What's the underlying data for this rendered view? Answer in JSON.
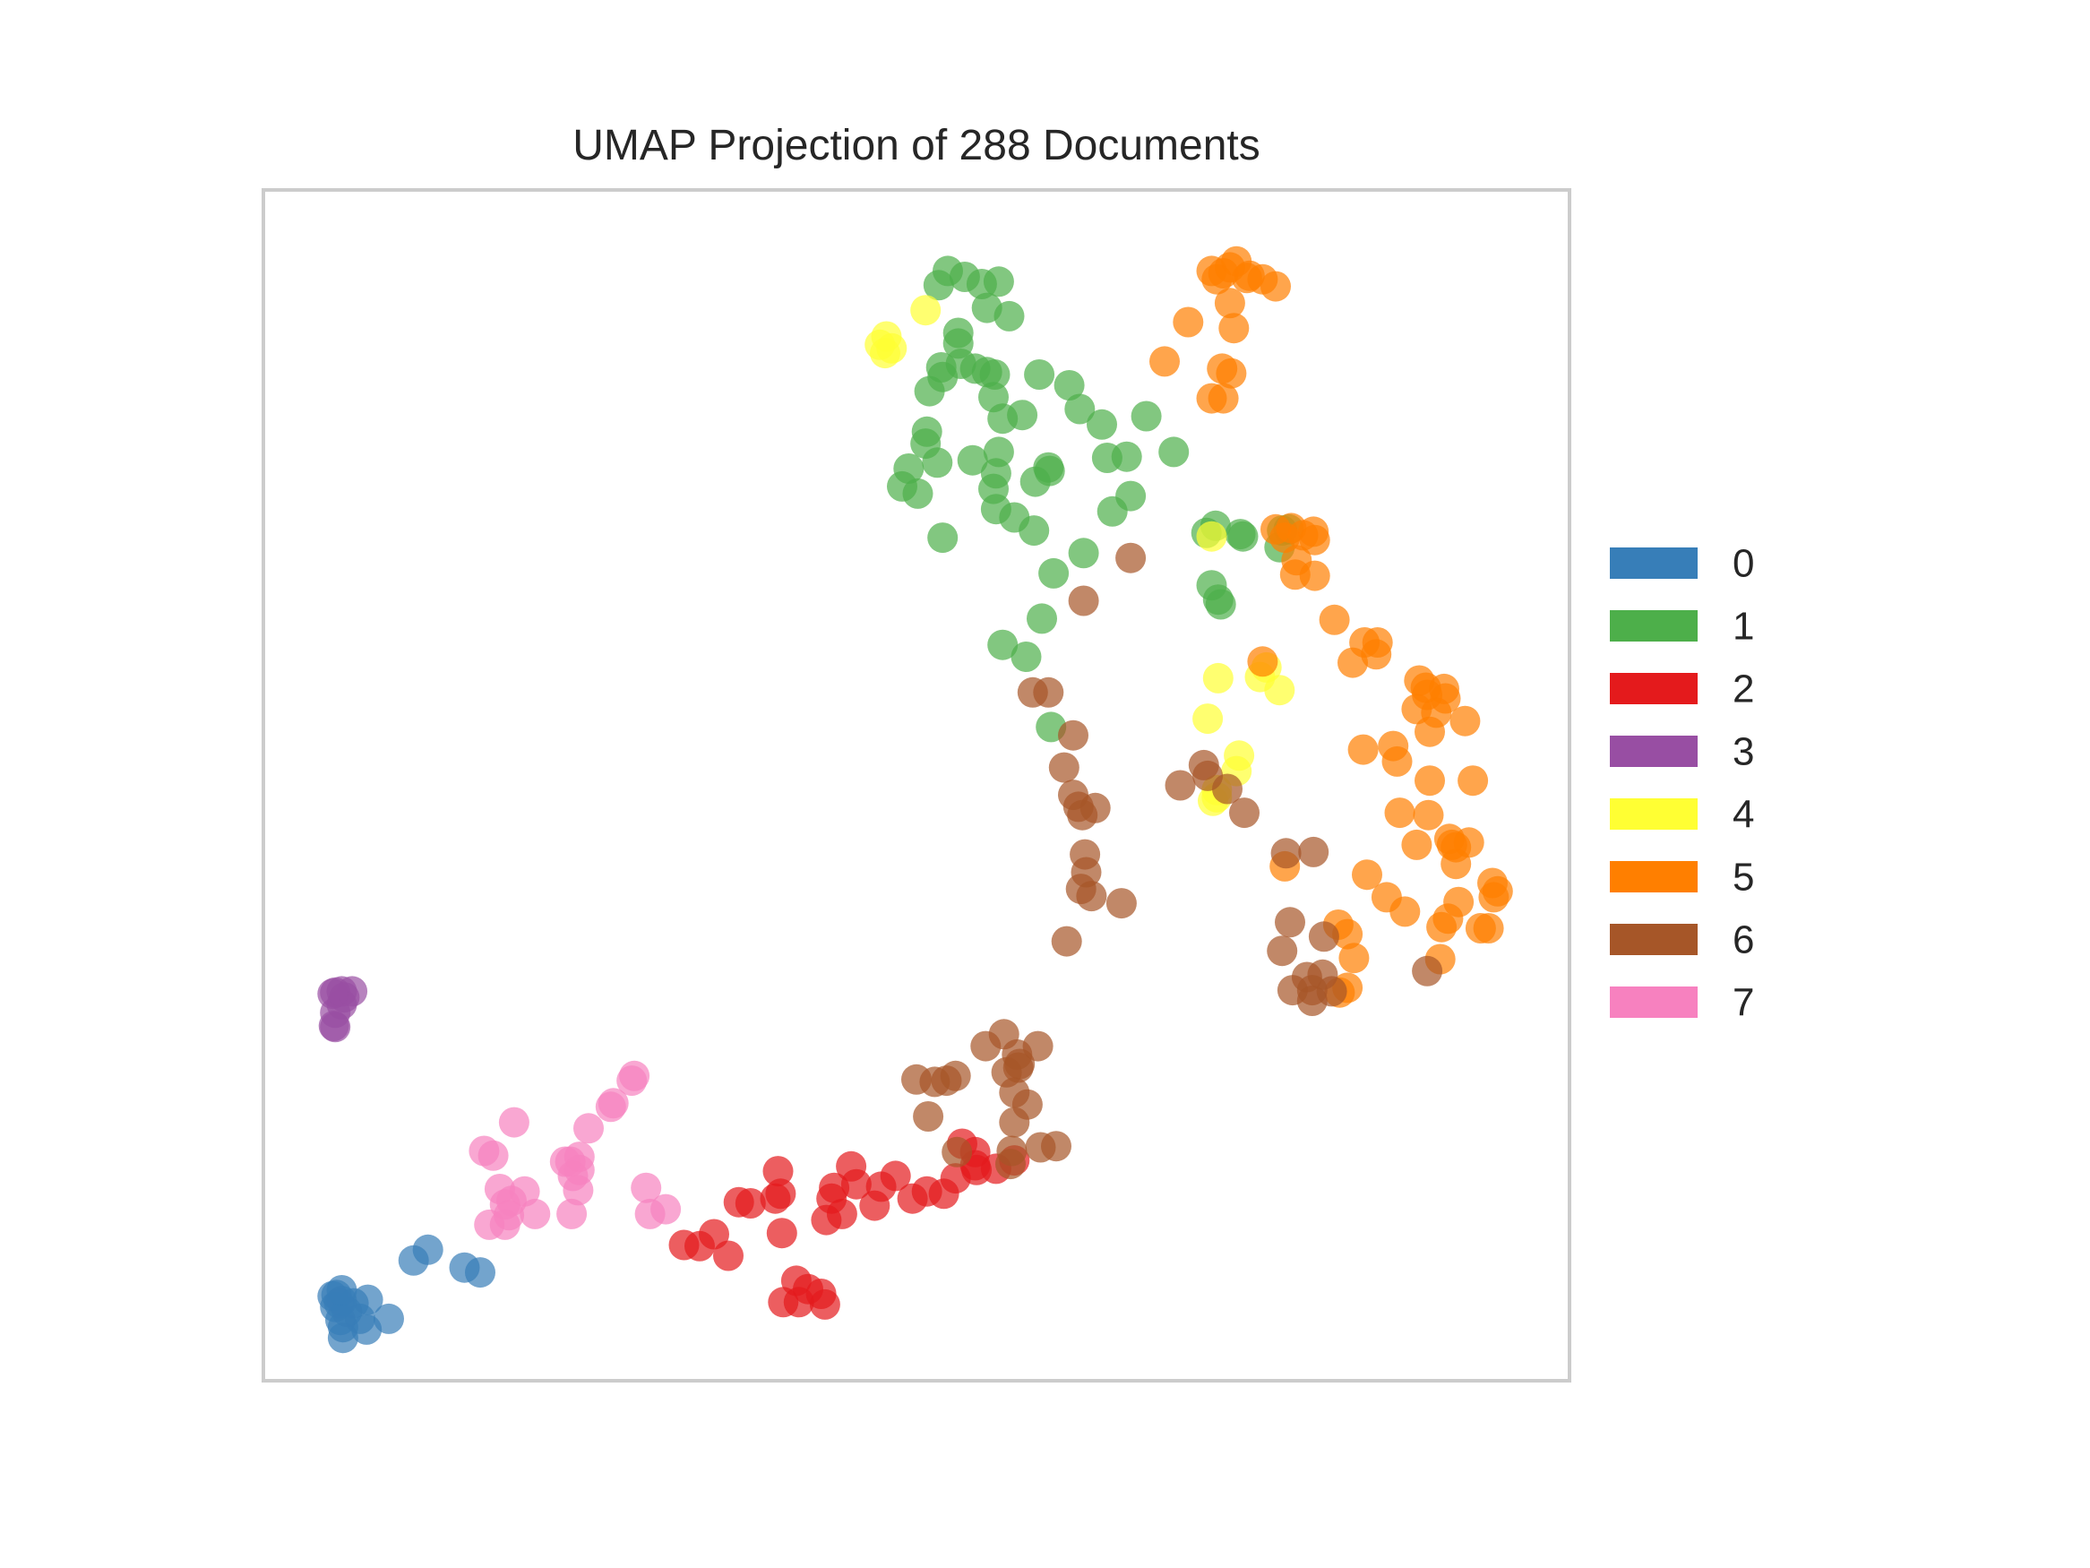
{
  "chart_data": {
    "type": "scatter",
    "title": "UMAP Projection of 288 Documents",
    "xlabel": "",
    "ylabel": "",
    "xlim": [
      0,
      100
    ],
    "ylim": [
      0,
      100
    ],
    "grid": false,
    "ticks": false,
    "legend_position": "right",
    "marker_opacity": 0.7,
    "series": [
      {
        "name": "0",
        "color": "#377eb8",
        "points": [
          [
            6.1,
            4.5
          ],
          [
            6.9,
            6.5
          ],
          [
            5.9,
            5.1
          ],
          [
            5.6,
            7.2
          ],
          [
            7.4,
            5.2
          ],
          [
            8.0,
            6.8
          ],
          [
            7.9,
            4.3
          ],
          [
            9.6,
            5.2
          ],
          [
            5.3,
            7.1
          ],
          [
            6.1,
            3.6
          ],
          [
            5.5,
            6.2
          ],
          [
            6.0,
            6.7
          ],
          [
            11.5,
            10.1
          ],
          [
            12.6,
            11.0
          ],
          [
            15.4,
            9.5
          ],
          [
            16.6,
            9.1
          ],
          [
            5.8,
            6.5
          ],
          [
            6.4,
            5.8
          ],
          [
            6.0,
            7.6
          ]
        ]
      },
      {
        "name": "1",
        "color": "#4daf4a",
        "points": [
          [
            51.7,
            92.0
          ],
          [
            52.4,
            93.2
          ],
          [
            53.7,
            92.7
          ],
          [
            55.0,
            92.1
          ],
          [
            56.3,
            92.3
          ],
          [
            55.4,
            90.1
          ],
          [
            57.1,
            89.4
          ],
          [
            53.2,
            88.0
          ],
          [
            53.2,
            87.1
          ],
          [
            51.9,
            85.1
          ],
          [
            52.0,
            84.3
          ],
          [
            53.4,
            85.4
          ],
          [
            54.5,
            85.0
          ],
          [
            55.4,
            84.7
          ],
          [
            56.0,
            84.5
          ],
          [
            59.4,
            84.5
          ],
          [
            61.7,
            83.6
          ],
          [
            55.9,
            82.6
          ],
          [
            51.0,
            83.1
          ],
          [
            62.5,
            81.6
          ],
          [
            56.6,
            80.8
          ],
          [
            58.1,
            81.1
          ],
          [
            64.2,
            80.3
          ],
          [
            67.6,
            81.0
          ],
          [
            50.7,
            78.7
          ],
          [
            50.8,
            79.7
          ],
          [
            49.4,
            76.6
          ],
          [
            48.9,
            75.1
          ],
          [
            50.1,
            74.5
          ],
          [
            51.6,
            77.1
          ],
          [
            54.3,
            77.3
          ],
          [
            56.3,
            78.0
          ],
          [
            56.1,
            76.2
          ],
          [
            60.1,
            76.7
          ],
          [
            60.2,
            76.4
          ],
          [
            55.9,
            74.9
          ],
          [
            59.1,
            75.5
          ],
          [
            66.1,
            77.6
          ],
          [
            64.6,
            77.5
          ],
          [
            69.7,
            78.0
          ],
          [
            66.4,
            74.3
          ],
          [
            65.0,
            73.0
          ],
          [
            56.1,
            73.2
          ],
          [
            57.5,
            72.5
          ],
          [
            59.0,
            71.4
          ],
          [
            52.0,
            70.8
          ],
          [
            62.8,
            69.5
          ],
          [
            60.5,
            67.8
          ],
          [
            59.6,
            64.0
          ],
          [
            56.6,
            61.8
          ],
          [
            58.4,
            60.8
          ],
          [
            60.3,
            54.9
          ],
          [
            72.2,
            71.2
          ],
          [
            72.9,
            71.8
          ],
          [
            74.8,
            71.1
          ],
          [
            78.0,
            71.4
          ],
          [
            78.5,
            71.5
          ],
          [
            77.8,
            70.0
          ],
          [
            72.6,
            66.8
          ],
          [
            73.3,
            65.2
          ],
          [
            75.0,
            70.9
          ],
          [
            73.1,
            65.6
          ]
        ]
      },
      {
        "name": "2",
        "color": "#e41a1c",
        "points": [
          [
            39.4,
            17.6
          ],
          [
            39.2,
            15.3
          ],
          [
            39.7,
            12.4
          ],
          [
            39.6,
            15.7
          ],
          [
            37.3,
            14.9
          ],
          [
            36.4,
            15.0
          ],
          [
            34.5,
            12.3
          ],
          [
            32.2,
            11.4
          ],
          [
            33.4,
            11.3
          ],
          [
            35.6,
            10.5
          ],
          [
            39.8,
            6.6
          ],
          [
            40.8,
            8.4
          ],
          [
            41.7,
            7.7
          ],
          [
            41.0,
            6.6
          ],
          [
            42.7,
            7.3
          ],
          [
            43.0,
            6.4
          ],
          [
            43.7,
            16.2
          ],
          [
            43.1,
            13.5
          ],
          [
            44.3,
            14.0
          ],
          [
            43.5,
            15.3
          ],
          [
            45.0,
            18.0
          ],
          [
            45.4,
            16.5
          ],
          [
            46.8,
            14.7
          ],
          [
            47.3,
            16.3
          ],
          [
            48.4,
            17.2
          ],
          [
            49.7,
            15.3
          ],
          [
            50.8,
            15.9
          ],
          [
            52.1,
            15.7
          ],
          [
            53.0,
            17.0
          ],
          [
            54.5,
            18.1
          ],
          [
            54.6,
            17.7
          ],
          [
            56.1,
            17.8
          ],
          [
            57.5,
            18.5
          ],
          [
            53.5,
            19.9
          ],
          [
            54.5,
            19.2
          ]
        ]
      },
      {
        "name": "3",
        "color": "#984ea3",
        "points": [
          [
            5.5,
            32.6
          ],
          [
            6.0,
            31.6
          ],
          [
            5.5,
            29.7
          ],
          [
            5.5,
            30.9
          ],
          [
            6.2,
            32.2
          ],
          [
            6.8,
            32.7
          ],
          [
            5.3,
            32.5
          ],
          [
            6.0,
            32.7
          ],
          [
            5.4,
            29.8
          ]
        ]
      },
      {
        "name": "4",
        "color": "#ffff33",
        "points": [
          [
            47.7,
            87.7
          ],
          [
            47.6,
            86.3
          ],
          [
            47.2,
            87.0
          ],
          [
            48.1,
            86.7
          ],
          [
            50.7,
            89.9
          ],
          [
            72.6,
            70.9
          ],
          [
            76.3,
            59.1
          ],
          [
            76.8,
            59.9
          ],
          [
            77.8,
            58.0
          ],
          [
            73.1,
            59.0
          ],
          [
            72.3,
            55.6
          ],
          [
            74.7,
            52.5
          ],
          [
            74.5,
            51.2
          ],
          [
            73.0,
            49.6
          ],
          [
            72.7,
            48.7
          ],
          [
            73.0,
            49.0
          ]
        ]
      },
      {
        "name": "5",
        "color": "#ff7f00",
        "points": [
          [
            72.6,
            93.2
          ],
          [
            73.0,
            92.5
          ],
          [
            74.0,
            93.5
          ],
          [
            74.5,
            94.0
          ],
          [
            75.3,
            92.6
          ],
          [
            76.5,
            92.5
          ],
          [
            77.5,
            91.9
          ],
          [
            75.5,
            92.8
          ],
          [
            73.5,
            93.0
          ],
          [
            74.0,
            90.5
          ],
          [
            70.8,
            88.9
          ],
          [
            74.3,
            88.4
          ],
          [
            69.0,
            85.6
          ],
          [
            73.4,
            85.0
          ],
          [
            74.1,
            84.6
          ],
          [
            72.6,
            82.5
          ],
          [
            73.5,
            82.5
          ],
          [
            77.5,
            71.5
          ],
          [
            78.2,
            70.8
          ],
          [
            78.7,
            71.6
          ],
          [
            79.6,
            71.0
          ],
          [
            80.4,
            71.3
          ],
          [
            80.5,
            70.6
          ],
          [
            79.1,
            68.9
          ],
          [
            79.0,
            67.7
          ],
          [
            80.5,
            67.6
          ],
          [
            82.0,
            63.9
          ],
          [
            84.3,
            62.0
          ],
          [
            85.2,
            61.0
          ],
          [
            85.3,
            62.0
          ],
          [
            83.4,
            60.3
          ],
          [
            76.5,
            60.4
          ],
          [
            90.4,
            58.1
          ],
          [
            90.5,
            57.3
          ],
          [
            89.8,
            56.1
          ],
          [
            89.1,
            57.6
          ],
          [
            88.3,
            56.4
          ],
          [
            89.0,
            58.2
          ],
          [
            88.5,
            58.8
          ],
          [
            92.0,
            55.4
          ],
          [
            89.3,
            54.5
          ],
          [
            86.5,
            53.3
          ],
          [
            84.2,
            53.0
          ],
          [
            86.8,
            52.0
          ],
          [
            89.3,
            50.4
          ],
          [
            92.6,
            50.4
          ],
          [
            87.0,
            47.7
          ],
          [
            89.2,
            47.5
          ],
          [
            90.8,
            45.5
          ],
          [
            88.3,
            45.0
          ],
          [
            91.0,
            45.0
          ],
          [
            91.3,
            44.8
          ],
          [
            92.3,
            45.2
          ],
          [
            91.3,
            43.4
          ],
          [
            94.1,
            41.8
          ],
          [
            94.5,
            41.1
          ],
          [
            94.2,
            40.6
          ],
          [
            84.5,
            42.5
          ],
          [
            86.0,
            40.6
          ],
          [
            87.4,
            39.4
          ],
          [
            90.2,
            38.1
          ],
          [
            91.5,
            40.2
          ],
          [
            93.2,
            38.0
          ],
          [
            93.8,
            38.0
          ],
          [
            90.7,
            38.8
          ],
          [
            82.3,
            38.3
          ],
          [
            83.0,
            37.5
          ],
          [
            90.1,
            35.4
          ],
          [
            83.5,
            35.5
          ],
          [
            83.0,
            33.0
          ],
          [
            82.4,
            32.6
          ],
          [
            78.2,
            43.2
          ]
        ]
      },
      {
        "name": "6",
        "color": "#a65628",
        "points": [
          [
            66.4,
            69.1
          ],
          [
            62.8,
            65.5
          ],
          [
            58.9,
            57.8
          ],
          [
            60.1,
            57.8
          ],
          [
            62.0,
            54.2
          ],
          [
            61.3,
            51.5
          ],
          [
            62.0,
            49.2
          ],
          [
            62.4,
            48.2
          ],
          [
            63.7,
            48.1
          ],
          [
            62.7,
            47.5
          ],
          [
            70.2,
            50.0
          ],
          [
            72.3,
            50.8
          ],
          [
            72.0,
            51.7
          ],
          [
            73.8,
            49.7
          ],
          [
            75.1,
            47.7
          ],
          [
            62.9,
            44.2
          ],
          [
            63.0,
            42.7
          ],
          [
            62.6,
            41.3
          ],
          [
            63.4,
            40.7
          ],
          [
            65.7,
            40.1
          ],
          [
            61.5,
            36.9
          ],
          [
            78.3,
            44.3
          ],
          [
            80.4,
            44.4
          ],
          [
            78.6,
            38.5
          ],
          [
            78.0,
            36.1
          ],
          [
            81.2,
            37.3
          ],
          [
            81.1,
            34.1
          ],
          [
            79.9,
            33.9
          ],
          [
            80.3,
            32.8
          ],
          [
            78.8,
            32.8
          ],
          [
            80.3,
            31.9
          ],
          [
            81.8,
            32.7
          ],
          [
            89.1,
            34.4
          ],
          [
            56.7,
            29.1
          ],
          [
            55.3,
            28.1
          ],
          [
            57.7,
            27.4
          ],
          [
            59.3,
            28.1
          ],
          [
            57.8,
            26.3
          ],
          [
            57.9,
            26.6
          ],
          [
            56.9,
            25.9
          ],
          [
            50.0,
            25.3
          ],
          [
            51.4,
            25.1
          ],
          [
            52.3,
            25.2
          ],
          [
            53.0,
            25.6
          ],
          [
            57.5,
            24.2
          ],
          [
            58.5,
            23.2
          ],
          [
            57.5,
            21.7
          ],
          [
            50.9,
            22.2
          ],
          [
            53.1,
            19.2
          ],
          [
            57.3,
            19.3
          ],
          [
            57.2,
            18.2
          ],
          [
            59.5,
            19.6
          ],
          [
            60.7,
            19.7
          ]
        ]
      },
      {
        "name": "7",
        "color": "#f781bf",
        "points": [
          [
            28.4,
            25.6
          ],
          [
            28.2,
            25.2
          ],
          [
            26.8,
            23.3
          ],
          [
            26.6,
            23.0
          ],
          [
            24.9,
            21.2
          ],
          [
            19.2,
            21.7
          ],
          [
            16.9,
            19.3
          ],
          [
            17.6,
            18.9
          ],
          [
            24.2,
            18.8
          ],
          [
            23.7,
            17.2
          ],
          [
            23.5,
            18.4
          ],
          [
            23.1,
            18.4
          ],
          [
            24.2,
            17.7
          ],
          [
            18.1,
            16.1
          ],
          [
            20.0,
            15.9
          ],
          [
            19.0,
            15.1
          ],
          [
            18.5,
            14.8
          ],
          [
            18.8,
            13.9
          ],
          [
            20.8,
            14.0
          ],
          [
            18.5,
            13.1
          ],
          [
            17.3,
            13.1
          ],
          [
            24.1,
            16.0
          ],
          [
            29.3,
            16.2
          ],
          [
            23.6,
            14.0
          ],
          [
            29.6,
            14.0
          ],
          [
            30.8,
            14.4
          ]
        ]
      }
    ]
  }
}
